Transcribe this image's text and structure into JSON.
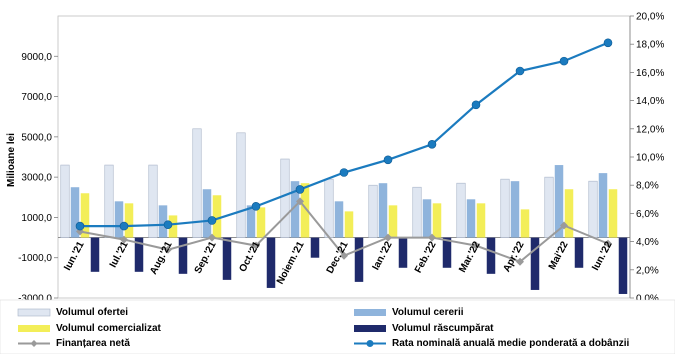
{
  "chart_data": {
    "type": "bar",
    "categories": [
      "Iun.'21",
      "Iul.'21",
      "Aug.'21",
      "Sep.'21",
      "Oct.'21",
      "Noiem.'21",
      "Dec.'21",
      "Ian.'22",
      "Feb.'22",
      "Mar.'22",
      "Apr.'22",
      "Mai'22",
      "Iun.'22"
    ],
    "ylabel": "Milioane lei",
    "ylim": [
      -3000,
      11000
    ],
    "y_ticks": [
      "-3000,0",
      "-1000,0",
      "1000,0",
      "3000,0",
      "5000,0",
      "7000,0",
      "9000,0"
    ],
    "y_tick_values": [
      -3000,
      -1000,
      1000,
      3000,
      5000,
      7000,
      9000
    ],
    "y2lim": [
      0,
      20
    ],
    "y2_ticks": [
      "0,0%",
      "2,0%",
      "4,0%",
      "6,0%",
      "8,0%",
      "10,0%",
      "12,0%",
      "14,0%",
      "16,0%",
      "18,0%",
      "20,0%"
    ],
    "y2_tick_values": [
      0,
      2,
      4,
      6,
      8,
      10,
      12,
      14,
      16,
      18,
      20
    ],
    "legend_position": "bottom",
    "series": [
      {
        "name": "Volumul ofertei",
        "type": "bar",
        "axis": "left",
        "color": "#dfe6f1",
        "values": [
          3600,
          3600,
          3600,
          5400,
          5200,
          3900,
          2900,
          2600,
          2500,
          2700,
          2900,
          3000,
          2800
        ]
      },
      {
        "name": "Volumul cererii",
        "type": "bar",
        "axis": "left",
        "color": "#8fb4dc",
        "values": [
          2500,
          1800,
          1600,
          2400,
          1600,
          2800,
          1800,
          2700,
          1900,
          1900,
          2800,
          3600,
          3200
        ]
      },
      {
        "name": "Volumul comercializat",
        "type": "bar",
        "axis": "left",
        "color": "#f3ee58",
        "values": [
          2200,
          1700,
          1100,
          2100,
          1500,
          2700,
          1300,
          1600,
          1700,
          1700,
          1400,
          2400,
          2400
        ]
      },
      {
        "name": "Volumul răscumpărat",
        "type": "bar",
        "axis": "left",
        "color": "#1f2a6b",
        "values": [
          -1700,
          -1700,
          -1800,
          -2100,
          -2500,
          -1000,
          -2200,
          -1500,
          -1500,
          -1800,
          -2600,
          -1500,
          -2800
        ]
      },
      {
        "name": "Finanțarea netă",
        "type": "line",
        "axis": "left",
        "color": "#9a9a9a",
        "values": [
          300,
          -100,
          -600,
          0,
          -400,
          1800,
          -900,
          0,
          0,
          -400,
          -1200,
          600,
          -300
        ]
      },
      {
        "name": "Rata nominală anuală medie ponderată a dobânzii",
        "type": "line",
        "axis": "right",
        "color": "#1b7bbf",
        "values": [
          5.1,
          5.1,
          5.2,
          5.5,
          6.5,
          7.7,
          8.9,
          9.8,
          10.9,
          13.7,
          16.1,
          16.8,
          18.1
        ]
      }
    ]
  }
}
